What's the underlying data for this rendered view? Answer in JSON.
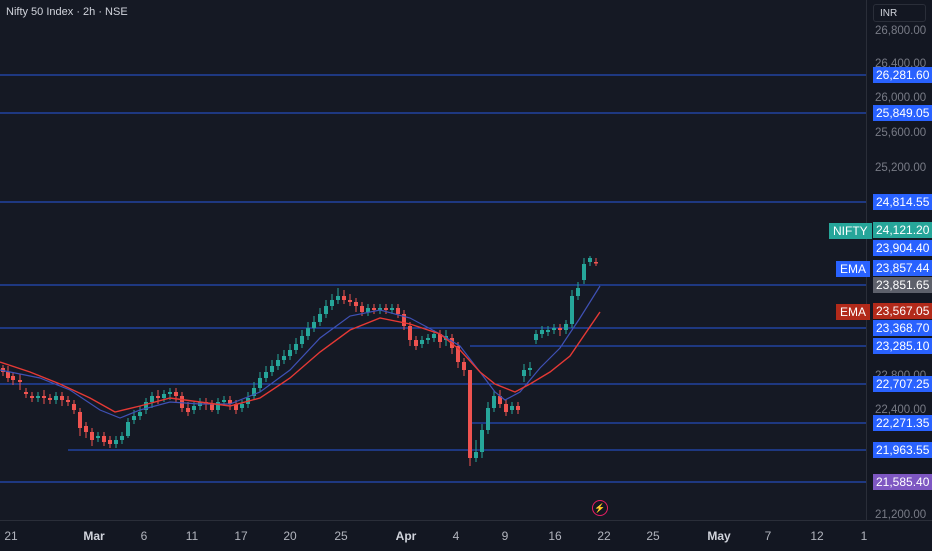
{
  "title": "Nifty 50 Index · 2h · NSE",
  "currency": "INR",
  "price_axis": {
    "ticks": [
      "26,800.00",
      "26,400.00",
      "26,000.00",
      "25,600.00",
      "25,200.00",
      "22,800.00",
      "22,400.00",
      "21,200.00"
    ]
  },
  "levels": [
    {
      "label": "26,281.60"
    },
    {
      "label": "25,849.05"
    },
    {
      "label": "24,814.55"
    },
    {
      "label": "23,851.65"
    },
    {
      "label": "23,368.70"
    },
    {
      "label": "23,285.10"
    },
    {
      "label": "22,707.25"
    },
    {
      "label": "22,271.35"
    },
    {
      "label": "21,963.55"
    },
    {
      "label": "21,585.40"
    }
  ],
  "markers": {
    "nifty": {
      "name": "NIFTY",
      "value": "24,121.20",
      "color": "#26a69a"
    },
    "high": {
      "value": "23,904.40"
    },
    "ema_fast": {
      "name": "EMA",
      "value": "23,857.44",
      "color": "#2962ff"
    },
    "ema_slow": {
      "name": "EMA",
      "value": "23,567.05",
      "color": "#b22a1a"
    }
  },
  "time_axis": [
    {
      "label": "21",
      "major": false
    },
    {
      "label": "Mar",
      "major": true
    },
    {
      "label": "6",
      "major": false
    },
    {
      "label": "11",
      "major": false
    },
    {
      "label": "17",
      "major": false
    },
    {
      "label": "20",
      "major": false
    },
    {
      "label": "25",
      "major": false
    },
    {
      "label": "Apr",
      "major": true
    },
    {
      "label": "4",
      "major": false
    },
    {
      "label": "9",
      "major": false
    },
    {
      "label": "16",
      "major": false
    },
    {
      "label": "22",
      "major": false
    },
    {
      "label": "25",
      "major": false
    },
    {
      "label": "May",
      "major": true
    },
    {
      "label": "7",
      "major": false
    },
    {
      "label": "12",
      "major": false
    },
    {
      "label": "1",
      "major": false
    }
  ],
  "colors": {
    "up": "#26a69a",
    "down": "#ef5350",
    "level_line": "#2962ff",
    "ema_fast": "#3f51b5",
    "ema_slow": "#e53935",
    "purple": "#7e57c2"
  },
  "icons": {
    "event": "lightning-bolt-icon"
  }
}
